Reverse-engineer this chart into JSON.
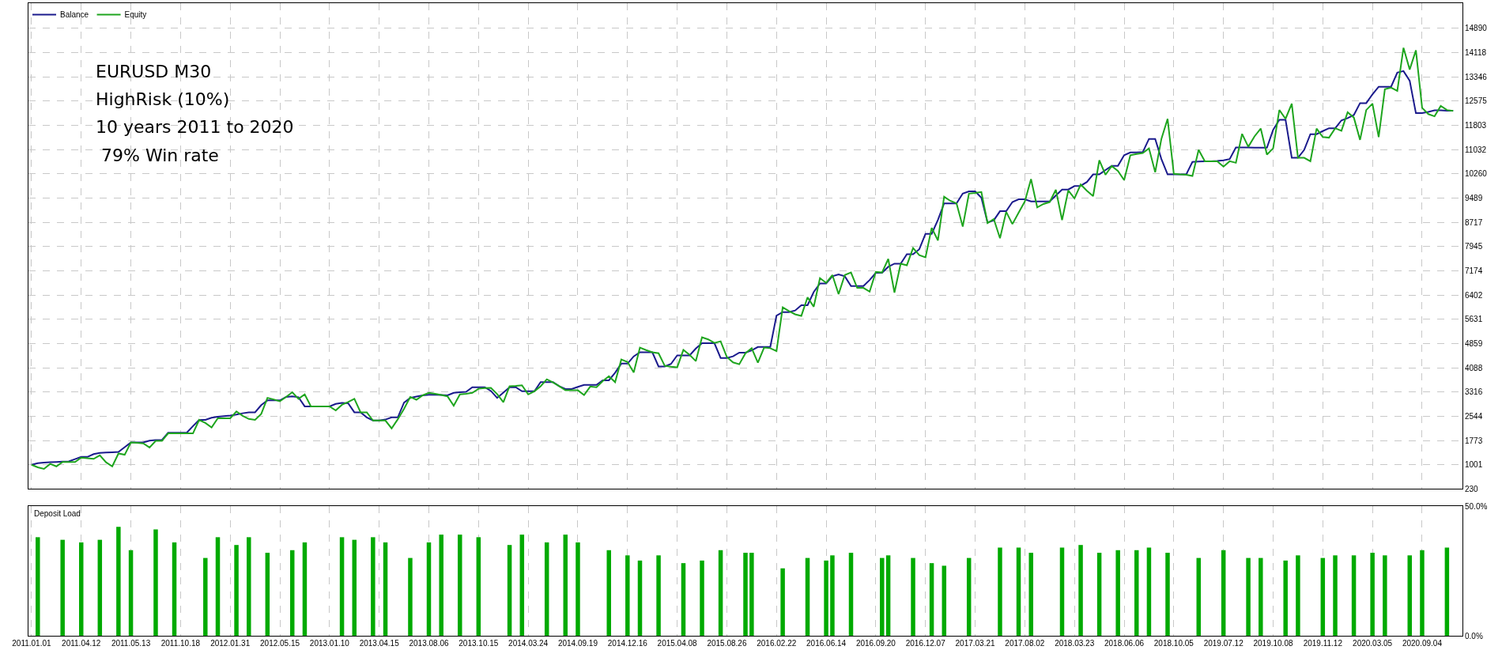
{
  "chart_data": [
    {
      "type": "line",
      "legend": "top left",
      "grid": true,
      "tick_labels": "y",
      "annotations": [
        "EURUSD M30",
        "HighRisk (10%)",
        "10 years 2011 to 2020",
        " 79% Win rate"
      ],
      "categories": [
        "2011.01.01",
        null,
        null,
        null,
        null,
        null,
        null,
        null,
        "2011.04.12",
        null,
        null,
        null,
        null,
        null,
        null,
        null,
        "2011.05.13",
        null,
        null,
        null,
        null,
        null,
        null,
        null,
        "2011.10.18",
        null,
        null,
        null,
        null,
        null,
        null,
        null,
        "2012.01.31",
        null,
        null,
        null,
        null,
        null,
        null,
        null,
        "2012.05.15",
        null,
        null,
        null,
        null,
        null,
        null,
        null,
        "2013.01.10",
        null,
        null,
        null,
        null,
        null,
        null,
        null,
        "2013.04.15",
        null,
        null,
        null,
        null,
        null,
        null,
        null,
        "2013.08.06",
        null,
        null,
        null,
        null,
        null,
        null,
        null,
        "2013.10.15",
        null,
        null,
        null,
        null,
        null,
        null,
        null,
        "2014.03.24",
        null,
        null,
        null,
        null,
        null,
        null,
        null,
        "2014.09.19",
        null,
        null,
        null,
        null,
        null,
        null,
        null,
        "2014.12.16",
        null,
        null,
        null,
        null,
        null,
        null,
        null,
        "2015.04.08",
        null,
        null,
        null,
        null,
        null,
        null,
        null,
        "2015.08.26",
        null,
        null,
        null,
        null,
        null,
        null,
        null,
        "2016.02.22",
        null,
        null,
        null,
        null,
        null,
        null,
        null,
        "2016.06.14",
        null,
        null,
        null,
        null,
        null,
        null,
        null,
        "2016.09.20",
        null,
        null,
        null,
        null,
        null,
        null,
        null,
        "2016.12.07",
        null,
        null,
        null,
        null,
        null,
        null,
        null,
        "2017.03.21",
        null,
        null,
        null,
        null,
        null,
        null,
        null,
        "2017.08.02",
        null,
        null,
        null,
        null,
        null,
        null,
        null,
        "2018.03.23",
        null,
        null,
        null,
        null,
        null,
        null,
        null,
        "2018.06.06",
        null,
        null,
        null,
        null,
        null,
        null,
        null,
        "2018.10.05",
        null,
        null,
        null,
        null,
        null,
        null,
        null,
        "2019.07.12",
        null,
        null,
        null,
        null,
        null,
        null,
        null,
        "2019.10.08",
        null,
        null,
        null,
        null,
        null,
        null,
        null,
        "2019.11.12",
        null,
        null,
        null,
        null,
        null,
        null,
        null,
        "2020.03.05",
        null,
        null,
        null,
        null,
        null,
        null,
        null,
        "2020.09.04",
        null,
        null,
        null,
        null,
        null,
        null
      ],
      "ylim": [
        230,
        15690
      ],
      "yticks": [
        230,
        1001,
        1773,
        2544,
        3316,
        4088,
        4859,
        5631,
        6402,
        7174,
        7945,
        8717,
        9489,
        10260,
        11032,
        11803,
        12575,
        13346,
        14118,
        14890
      ],
      "series": [
        {
          "name": "Balance",
          "color": "#1a1a8c",
          "values": [
            1000,
            1050,
            1070,
            1080,
            1090,
            1100,
            1110,
            1180,
            1250,
            1250,
            1340,
            1380,
            1390,
            1400,
            1410,
            1560,
            1710,
            1710,
            1710,
            1770,
            1790,
            1790,
            2020,
            2020,
            2020,
            2020,
            2230,
            2430,
            2430,
            2500,
            2530,
            2550,
            2570,
            2600,
            2640,
            2670,
            2670,
            2900,
            3050,
            3050,
            3050,
            3160,
            3180,
            3150,
            2860,
            2860,
            2860,
            2860,
            2860,
            2940,
            2970,
            2960,
            2670,
            2670,
            2510,
            2410,
            2410,
            2440,
            2510,
            2510,
            2980,
            3130,
            3170,
            3210,
            3230,
            3230,
            3220,
            3210,
            3290,
            3310,
            3320,
            3470,
            3470,
            3470,
            3350,
            3130,
            3300,
            3470,
            3470,
            3340,
            3340,
            3340,
            3630,
            3630,
            3630,
            3500,
            3410,
            3410,
            3480,
            3540,
            3540,
            3540,
            3690,
            3690,
            3930,
            4220,
            4220,
            4450,
            4580,
            4580,
            4580,
            4130,
            4130,
            4210,
            4480,
            4480,
            4480,
            4700,
            4870,
            4870,
            4870,
            4400,
            4400,
            4450,
            4570,
            4570,
            4640,
            4750,
            4750,
            4750,
            5750,
            5860,
            5860,
            5910,
            6080,
            6080,
            6500,
            6770,
            6770,
            7000,
            7060,
            7000,
            6690,
            6690,
            6690,
            6880,
            7110,
            7110,
            7300,
            7400,
            7400,
            7700,
            7700,
            7860,
            8350,
            8350,
            8790,
            9320,
            9320,
            9320,
            9630,
            9700,
            9700,
            9500,
            8710,
            8780,
            9070,
            9070,
            9360,
            9450,
            9450,
            9380,
            9380,
            9380,
            9380,
            9570,
            9760,
            9760,
            9870,
            9880,
            10000,
            10240,
            10240,
            10380,
            10510,
            10510,
            10850,
            10940,
            10940,
            10950,
            11370,
            11370,
            10730,
            10240,
            10240,
            10240,
            10240,
            10640,
            10650,
            10660,
            10660,
            10670,
            10690,
            10730,
            11100,
            11100,
            11100,
            11090,
            11090,
            11090,
            11660,
            11980,
            11980,
            10770,
            10770,
            11020,
            11520,
            11520,
            11620,
            11710,
            11710,
            11960,
            12030,
            12130,
            12510,
            12510,
            12790,
            13030,
            13030,
            13030,
            13480,
            13530,
            13220,
            12190,
            12190,
            12230,
            12280,
            12280,
            12270,
            12270,
            null
          ]
        },
        {
          "name": "Equity",
          "color": "#1ea51e",
          "values": [
            1000,
            920,
            870,
            1030,
            950,
            1090,
            1090,
            1090,
            1230,
            1210,
            1190,
            1300,
            1080,
            950,
            1360,
            1320,
            1710,
            1700,
            1680,
            1550,
            1760,
            1760,
            2000,
            2000,
            2000,
            2000,
            2000,
            2430,
            2330,
            2190,
            2480,
            2480,
            2480,
            2700,
            2560,
            2460,
            2430,
            2620,
            3130,
            3080,
            3020,
            3160,
            3310,
            3100,
            3240,
            2860,
            2860,
            2860,
            2860,
            2730,
            2910,
            3000,
            3100,
            2670,
            2670,
            2410,
            2410,
            2410,
            2160,
            2450,
            2780,
            3160,
            3070,
            3210,
            3290,
            3260,
            3220,
            3180,
            2880,
            3240,
            3260,
            3290,
            3420,
            3440,
            3450,
            3250,
            2990,
            3500,
            3510,
            3530,
            3240,
            3340,
            3500,
            3720,
            3620,
            3500,
            3370,
            3370,
            3370,
            3220,
            3490,
            3470,
            3660,
            3820,
            3630,
            4350,
            4270,
            3940,
            4730,
            4650,
            4580,
            4550,
            4150,
            4120,
            4100,
            4660,
            4500,
            4300,
            5060,
            4990,
            4880,
            4930,
            4430,
            4260,
            4200,
            4550,
            4710,
            4250,
            4730,
            4710,
            4620,
            6010,
            5890,
            5790,
            5740,
            6330,
            6030,
            6940,
            6790,
            7040,
            6430,
            7040,
            7120,
            6630,
            6630,
            6510,
            7140,
            7120,
            7550,
            6480,
            7400,
            7350,
            7900,
            7670,
            7600,
            8540,
            8140,
            9530,
            9400,
            9320,
            8580,
            9630,
            9650,
            9680,
            8690,
            8820,
            8210,
            9050,
            8660,
            9020,
            9380,
            10090,
            9190,
            9300,
            9360,
            9750,
            8790,
            9730,
            9480,
            9920,
            9720,
            9550,
            10690,
            10230,
            10510,
            10350,
            10060,
            10850,
            10890,
            10920,
            11070,
            10310,
            11370,
            12010,
            10260,
            10240,
            10230,
            10190,
            11020,
            10660,
            10660,
            10660,
            10490,
            10660,
            10610,
            11530,
            11120,
            11450,
            11700,
            10870,
            11070,
            12290,
            12010,
            12490,
            10770,
            10770,
            10660,
            11700,
            11430,
            11410,
            11710,
            11630,
            12220,
            12050,
            11340,
            12290,
            12490,
            11430,
            12950,
            13000,
            12900,
            14270,
            13580,
            14190,
            12360,
            12160,
            12090,
            12420,
            12290,
            12260,
            null
          ]
        }
      ]
    },
    {
      "type": "bar",
      "title": "Deposit Load",
      "grid": "x",
      "color": "#00aa00",
      "categories": [
        "2011.01.01",
        null,
        null,
        null,
        null,
        null,
        null,
        null,
        "2011.04.12",
        null,
        null,
        null,
        null,
        null,
        null,
        null,
        "2011.05.13",
        null,
        null,
        null,
        null,
        null,
        null,
        null,
        "2011.10.18",
        null,
        null,
        null,
        null,
        null,
        null,
        null,
        "2012.01.31",
        null,
        null,
        null,
        null,
        null,
        null,
        null,
        "2012.05.15",
        null,
        null,
        null,
        null,
        null,
        null,
        null,
        "2013.01.10",
        null,
        null,
        null,
        null,
        null,
        null,
        null,
        "2013.04.15",
        null,
        null,
        null,
        null,
        null,
        null,
        null,
        "2013.08.06",
        null,
        null,
        null,
        null,
        null,
        null,
        null,
        "2013.10.15",
        null,
        null,
        null,
        null,
        null,
        null,
        null,
        "2014.03.24",
        null,
        null,
        null,
        null,
        null,
        null,
        null,
        "2014.09.19",
        null,
        null,
        null,
        null,
        null,
        null,
        null,
        "2014.12.16",
        null,
        null,
        null,
        null,
        null,
        null,
        null,
        "2015.04.08",
        null,
        null,
        null,
        null,
        null,
        null,
        null,
        "2015.08.26",
        null,
        null,
        null,
        null,
        null,
        null,
        null,
        "2016.02.22",
        null,
        null,
        null,
        null,
        null,
        null,
        null,
        "2016.06.14",
        null,
        null,
        null,
        null,
        null,
        null,
        null,
        "2016.09.20",
        null,
        null,
        null,
        null,
        null,
        null,
        null,
        "2016.12.07",
        null,
        null,
        null,
        null,
        null,
        null,
        null,
        "2017.03.21",
        null,
        null,
        null,
        null,
        null,
        null,
        null,
        "2017.08.02",
        null,
        null,
        null,
        null,
        null,
        null,
        null,
        "2018.03.23",
        null,
        null,
        null,
        null,
        null,
        null,
        null,
        "2018.06.06",
        null,
        null,
        null,
        null,
        null,
        null,
        null,
        "2018.10.05",
        null,
        null,
        null,
        null,
        null,
        null,
        null,
        "2019.07.12",
        null,
        null,
        null,
        null,
        null,
        null,
        null,
        "2019.10.08",
        null,
        null,
        null,
        null,
        null,
        null,
        null,
        "2019.11.12",
        null,
        null,
        null,
        null,
        null,
        null,
        null,
        "2020.03.05",
        null,
        null,
        null,
        null,
        null,
        null,
        null,
        "2020.09.04",
        null,
        null,
        null,
        null,
        null,
        null
      ],
      "ylim": [
        0,
        50
      ],
      "yticks": [
        {
          "value": 0,
          "label": "0.0%"
        },
        {
          "value": 50,
          "label": "50.0%"
        }
      ],
      "values": [
        null,
        38,
        null,
        null,
        null,
        37,
        null,
        null,
        36,
        null,
        null,
        37,
        null,
        null,
        42,
        null,
        33,
        null,
        null,
        null,
        41,
        null,
        null,
        36,
        null,
        null,
        null,
        null,
        30,
        null,
        38,
        null,
        null,
        35,
        null,
        38,
        null,
        null,
        32,
        null,
        null,
        null,
        33,
        null,
        36,
        null,
        null,
        null,
        null,
        null,
        38,
        null,
        37,
        null,
        null,
        38,
        null,
        36,
        null,
        null,
        null,
        30,
        null,
        null,
        36,
        null,
        39,
        null,
        null,
        39,
        null,
        null,
        38,
        null,
        null,
        null,
        null,
        35,
        null,
        39,
        null,
        null,
        null,
        36,
        null,
        null,
        39,
        null,
        36,
        null,
        null,
        null,
        null,
        33,
        null,
        null,
        31,
        null,
        29,
        null,
        null,
        31,
        null,
        null,
        null,
        28,
        null,
        null,
        29,
        null,
        null,
        33,
        null,
        null,
        null,
        32,
        32,
        null,
        null,
        null,
        null,
        26,
        null,
        null,
        null,
        30,
        null,
        null,
        29,
        31,
        null,
        null,
        32,
        null,
        null,
        null,
        null,
        30,
        31,
        null,
        null,
        null,
        30,
        null,
        null,
        28,
        null,
        27,
        null,
        null,
        null,
        30,
        null,
        null,
        null,
        null,
        34,
        null,
        null,
        34,
        null,
        32,
        null,
        null,
        null,
        null,
        34,
        null,
        null,
        35,
        null,
        null,
        32,
        null,
        null,
        33,
        null,
        null,
        33,
        null,
        34,
        null,
        null,
        32,
        null,
        null,
        null,
        null,
        30,
        null,
        null,
        null,
        33,
        null,
        null,
        null,
        30,
        null,
        30,
        null,
        null,
        null,
        29,
        null,
        31,
        null,
        null,
        null,
        30,
        null,
        31,
        null,
        null,
        31,
        null,
        null,
        32,
        null,
        31,
        null,
        null,
        null,
        31,
        null,
        33,
        null,
        null,
        null,
        34,
        null,
        null
      ]
    }
  ]
}
